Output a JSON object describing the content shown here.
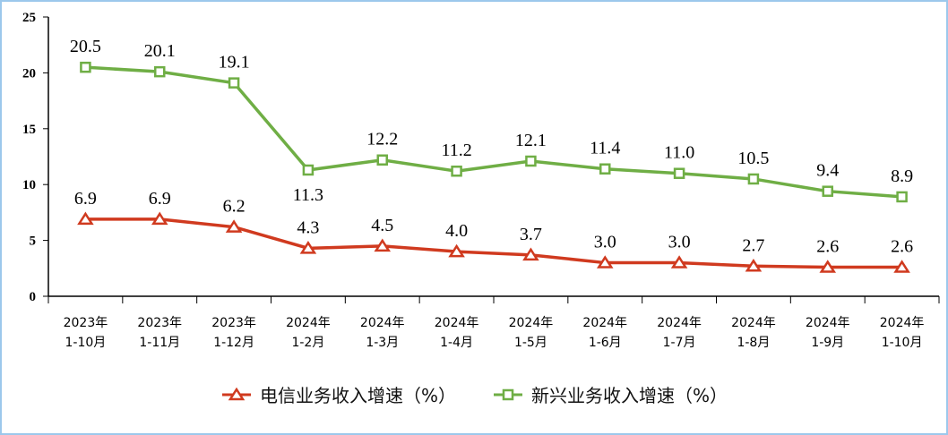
{
  "chart_data": {
    "type": "line",
    "categories": [
      [
        "2023年",
        "1-10月"
      ],
      [
        "2023年",
        "1-11月"
      ],
      [
        "2023年",
        "1-12月"
      ],
      [
        "2024年",
        "1-2月"
      ],
      [
        "2024年",
        "1-3月"
      ],
      [
        "2024年",
        "1-4月"
      ],
      [
        "2024年",
        "1-5月"
      ],
      [
        "2024年",
        "1-6月"
      ],
      [
        "2024年",
        "1-7月"
      ],
      [
        "2024年",
        "1-8月"
      ],
      [
        "2024年",
        "1-9月"
      ],
      [
        "2024年",
        "1-10月"
      ]
    ],
    "series": [
      {
        "name": "电信业务收入增速（%）",
        "color": "#d03a1f",
        "marker": "triangle",
        "values": [
          6.9,
          6.9,
          6.2,
          4.3,
          4.5,
          4.0,
          3.7,
          3.0,
          3.0,
          2.7,
          2.6,
          2.6
        ]
      },
      {
        "name": "新兴业务收入增速（%）",
        "color": "#6fae45",
        "marker": "square",
        "values": [
          20.5,
          20.1,
          19.1,
          11.3,
          12.2,
          11.2,
          12.1,
          11.4,
          11.0,
          10.5,
          9.4,
          8.9
        ]
      }
    ],
    "yticks": [
      0,
      5,
      10,
      15,
      20,
      25
    ],
    "ylim": [
      0,
      25
    ],
    "title": "",
    "xlabel": "",
    "ylabel": "",
    "grid": false,
    "legend_position": "bottom"
  }
}
